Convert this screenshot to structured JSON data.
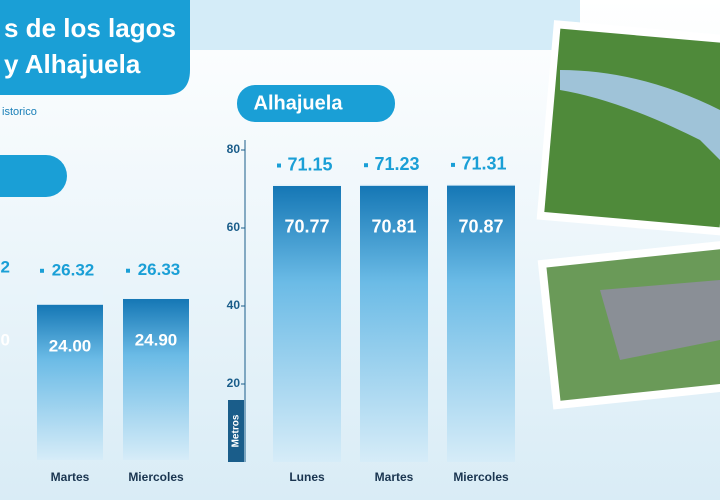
{
  "header": {
    "title_lines": [
      "s de los lagos",
      "y Alhajuela"
    ],
    "subtitle": "istorico"
  },
  "chart_data": [
    {
      "type": "column",
      "cropped_labels": [
        "2",
        "0"
      ],
      "categories": [
        null,
        "Martes",
        "Miercoles"
      ],
      "series": [
        {
          "values": [
            null,
            26.32,
            26.33
          ],
          "color": "#e8f4fb"
        },
        {
          "values": [
            null,
            24.0,
            24.9
          ],
          "value_labels": [
            null,
            "24.00",
            "24.90"
          ],
          "color": "#5fb3e0"
        }
      ],
      "ylim": [
        0,
        30
      ]
    },
    {
      "type": "column",
      "title": "Alhajuela",
      "y_label": "Metros",
      "categories": [
        "Lunes",
        "Martes",
        "Miercoles"
      ],
      "series": [
        {
          "values": [
            71.15,
            71.23,
            71.31
          ],
          "color": "#e8f4fb"
        },
        {
          "values": [
            70.77,
            70.81,
            70.87
          ],
          "color": "#5fb3e0"
        }
      ],
      "ylim": [
        0,
        80
      ],
      "yticks": [
        20,
        40,
        60,
        80
      ]
    }
  ]
}
